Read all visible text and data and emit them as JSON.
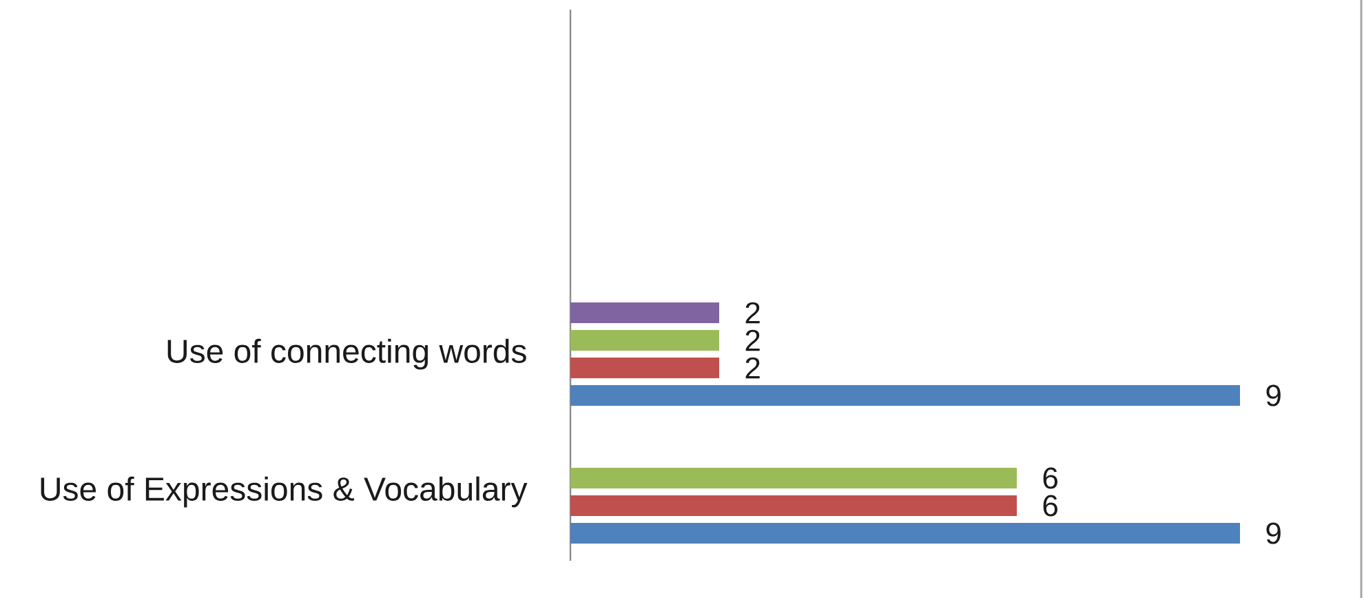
{
  "chart_data": {
    "type": "bar",
    "orientation": "horizontal",
    "categories": [
      null,
      null,
      "Use of connecting words",
      "Use of Expressions & Vocabulary"
    ],
    "series": [
      {
        "color": "#4f81bd",
        "values": [
          null,
          null,
          9,
          9
        ]
      },
      {
        "color": "#c0504d",
        "values": [
          null,
          null,
          2,
          6
        ]
      },
      {
        "color": "#9bbb59",
        "values": [
          null,
          null,
          2,
          6
        ]
      },
      {
        "color": "#8064a2",
        "values": [
          null,
          null,
          2,
          null
        ]
      }
    ],
    "data_labels": true
  }
}
